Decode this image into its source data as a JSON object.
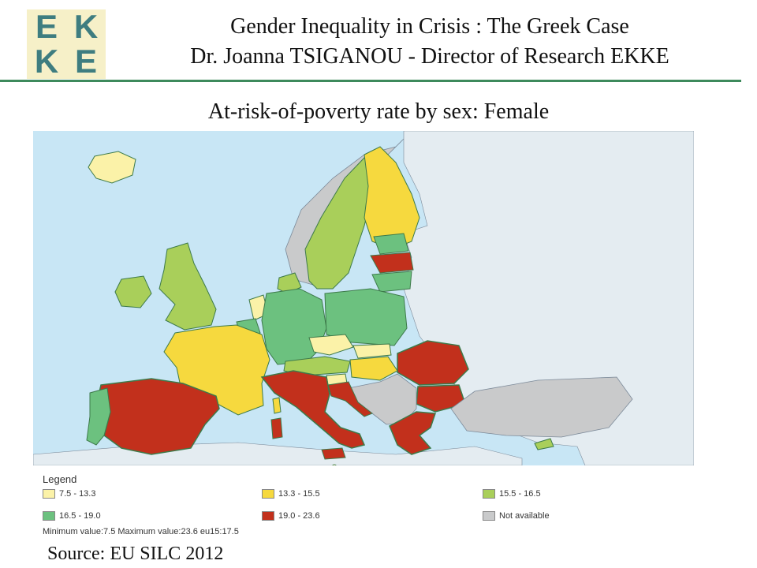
{
  "logo": {
    "letters": [
      "E",
      "K",
      "K",
      "E"
    ]
  },
  "header": {
    "title": "Gender Inequality in Crisis : The Greek Case",
    "subtitle": "Dr. Joanna TSIGANOU - Director of Research EKKE"
  },
  "map": {
    "title": "At-risk-of-poverty rate by sex: Female",
    "colors": {
      "sea": "#c8e6f5",
      "non_eu": "#e4ecf1",
      "c1": "#fbf2a8",
      "c2": "#f6d93e",
      "c3": "#a9cf5a",
      "c4": "#6cc17f",
      "c5": "#c2301c",
      "na": "#c9cacb"
    }
  },
  "legend": {
    "title": "Legend",
    "items": [
      {
        "label": "7.5 - 13.3",
        "color": "#fbf2a8"
      },
      {
        "label": "13.3 - 15.5",
        "color": "#f6d93e"
      },
      {
        "label": "15.5 - 16.5",
        "color": "#a9cf5a"
      },
      {
        "label": "16.5 - 19.0",
        "color": "#6cc17f"
      },
      {
        "label": "19.0 - 23.6",
        "color": "#c2301c"
      },
      {
        "label": "Not available",
        "color": "#c9cacb"
      }
    ],
    "note": "Minimum value:7.5 Maximum value:23.6 eu15:17.5"
  },
  "source": "Source: EU SILC 2012"
}
